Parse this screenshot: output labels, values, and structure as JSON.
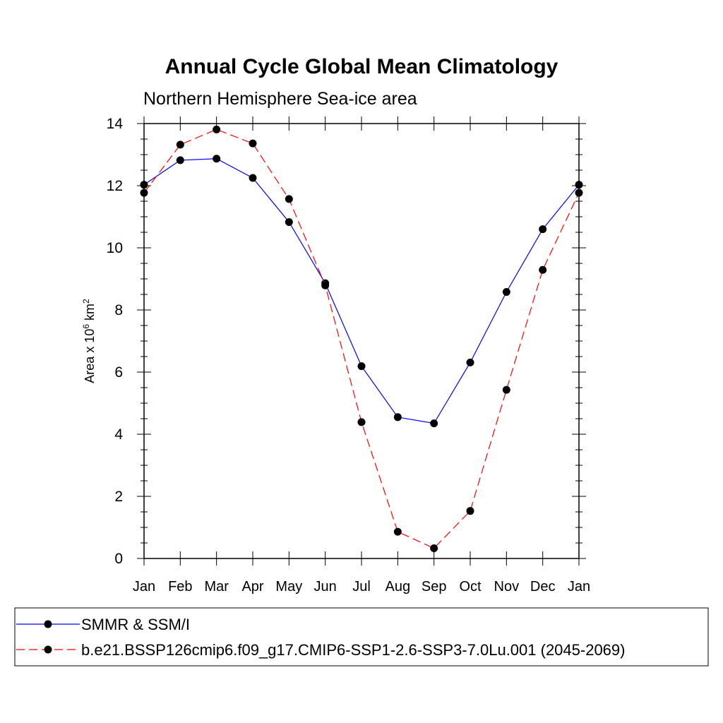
{
  "chart_data": {
    "type": "line",
    "title": "Annual Cycle Global Mean Climatology",
    "subtitle": "Northern Hemisphere Sea-ice area",
    "ylabel": {
      "prefix": "Area x 10",
      "exp1": "6",
      "mid": " km",
      "exp2": "2"
    },
    "categories": [
      "Jan",
      "Feb",
      "Mar",
      "Apr",
      "May",
      "Jun",
      "Jul",
      "Aug",
      "Sep",
      "Oct",
      "Nov",
      "Dec",
      "Jan"
    ],
    "ylim": [
      0,
      14
    ],
    "yticks": [
      0,
      2,
      4,
      6,
      8,
      10,
      12,
      14
    ],
    "series": [
      {
        "name": "SMMR & SSM/I",
        "color": "#0000ff",
        "dash": "solid",
        "values": [
          12.03,
          12.82,
          12.87,
          12.25,
          10.83,
          8.86,
          6.19,
          4.55,
          4.35,
          6.31,
          8.58,
          10.6,
          12.03
        ]
      },
      {
        "name": "b.e21.BSSP126cmip6.f09_g17.CMIP6-SSP1-2.6-SSP3-7.0Lu.001 (2045-2069)",
        "color": "#ff0000",
        "dash": "dashed",
        "values": [
          11.77,
          13.32,
          13.81,
          13.36,
          11.57,
          8.79,
          4.39,
          0.86,
          0.33,
          1.53,
          5.43,
          9.29,
          11.77
        ]
      }
    ],
    "legend_position": "bottom"
  }
}
